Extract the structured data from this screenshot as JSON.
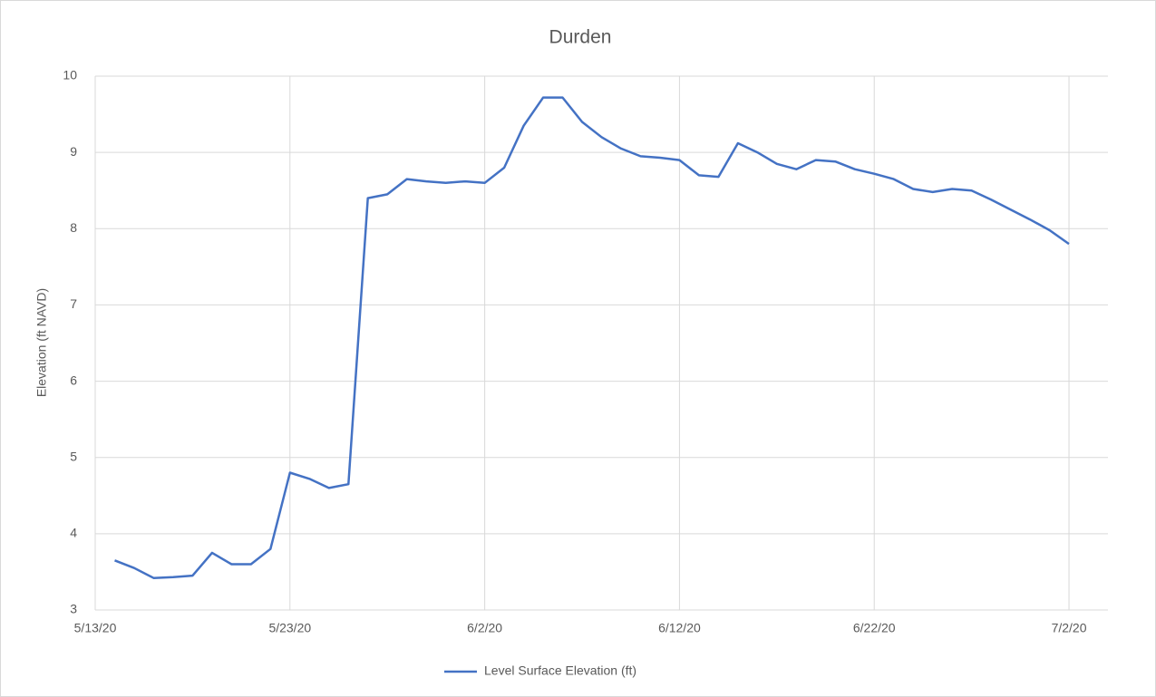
{
  "chart_data": {
    "type": "line",
    "title": "Durden",
    "y_label": "Elevation (ft NAVD)",
    "x": [
      "5/14/20",
      "5/15/20",
      "5/16/20",
      "5/17/20",
      "5/18/20",
      "5/19/20",
      "5/20/20",
      "5/21/20",
      "5/22/20",
      "5/23/20",
      "5/24/20",
      "5/25/20",
      "5/26/20",
      "5/27/20",
      "5/28/20",
      "5/29/20",
      "5/30/20",
      "5/31/20",
      "6/1/20",
      "6/2/20",
      "6/3/20",
      "6/4/20",
      "6/5/20",
      "6/6/20",
      "6/7/20",
      "6/8/20",
      "6/9/20",
      "6/10/20",
      "6/11/20",
      "6/12/20",
      "6/13/20",
      "6/14/20",
      "6/15/20",
      "6/16/20",
      "6/17/20",
      "6/18/20",
      "6/19/20",
      "6/20/20",
      "6/21/20",
      "6/22/20",
      "6/23/20",
      "6/24/20",
      "6/25/20",
      "6/26/20",
      "6/27/20",
      "6/28/20",
      "6/29/20",
      "6/30/20",
      "7/1/20",
      "7/2/20"
    ],
    "series": [
      {
        "name": "Level Surface Elevation (ft)",
        "color": "#4472c4",
        "values": [
          3.65,
          3.55,
          3.42,
          3.43,
          3.45,
          3.75,
          3.6,
          3.6,
          3.8,
          4.8,
          4.72,
          4.6,
          4.65,
          8.4,
          8.45,
          8.65,
          8.62,
          8.6,
          8.62,
          8.6,
          8.8,
          9.35,
          9.72,
          9.72,
          9.4,
          9.2,
          9.05,
          8.95,
          8.93,
          8.9,
          8.7,
          8.68,
          9.12,
          9.0,
          8.85,
          8.78,
          8.9,
          8.88,
          8.78,
          8.72,
          8.65,
          8.52,
          8.48,
          8.52,
          8.5,
          8.38,
          8.25,
          8.12,
          7.98,
          7.8
        ]
      }
    ],
    "xlim": [
      "5/13/20",
      "7/4/20"
    ],
    "xticks": [
      "5/13/20",
      "5/23/20",
      "6/2/20",
      "6/12/20",
      "6/22/20",
      "7/2/20"
    ],
    "ylim": [
      3,
      10
    ],
    "yticks": [
      3,
      4,
      5,
      6,
      7,
      8,
      9,
      10
    ],
    "grid": true,
    "legend": "bottom"
  }
}
